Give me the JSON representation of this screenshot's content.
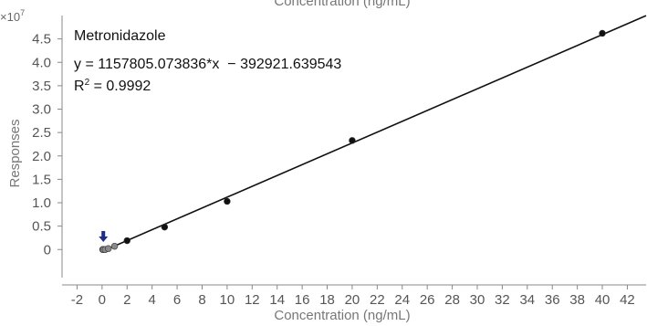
{
  "chart_data": {
    "type": "scatter",
    "title_top_clipped": "Concentration (ng/mL)",
    "xlabel": "Concentration (ng/mL)",
    "ylabel": "Responses",
    "y_multiplier": {
      "base": "×10",
      "exponent": "7"
    },
    "xlim": [
      -3.2,
      43.5
    ],
    "ylim": [
      -0.6,
      5.0
    ],
    "x_ticks": [
      -2,
      0,
      2,
      4,
      6,
      8,
      10,
      12,
      14,
      16,
      18,
      20,
      22,
      24,
      26,
      28,
      30,
      32,
      34,
      36,
      38,
      40,
      42
    ],
    "y_ticks": [
      {
        "value": 0,
        "label": "0"
      },
      {
        "value": 0.5,
        "label": "0.5"
      },
      {
        "value": 1.0,
        "label": "1.0"
      },
      {
        "value": 1.5,
        "label": "1.5"
      },
      {
        "value": 2.0,
        "label": "2.0"
      },
      {
        "value": 2.5,
        "label": "2.5"
      },
      {
        "value": 3.0,
        "label": "3.0"
      },
      {
        "value": 3.5,
        "label": "3.5"
      },
      {
        "value": 4.0,
        "label": "4.0"
      },
      {
        "value": 4.5,
        "label": "4.5"
      }
    ],
    "points": [
      {
        "x": 0.05,
        "y": 0.0,
        "color": "#8a8a8a"
      },
      {
        "x": 0.1,
        "y": 0.0,
        "color": "#8a8a8a"
      },
      {
        "x": 0.25,
        "y": 0.0,
        "color": "#8a8a8a"
      },
      {
        "x": 0.5,
        "y": 0.02,
        "color": "#8a8a8a"
      },
      {
        "x": 1.0,
        "y": 0.07,
        "color": "#8a8a8a"
      },
      {
        "x": 2.0,
        "y": 0.19,
        "color": "#111111"
      },
      {
        "x": 5.0,
        "y": 0.48,
        "color": "#111111"
      },
      {
        "x": 10.0,
        "y": 1.03,
        "color": "#111111"
      },
      {
        "x": 20.0,
        "y": 2.33,
        "color": "#111111"
      },
      {
        "x": 40.0,
        "y": 4.62,
        "color": "#111111"
      }
    ],
    "fit_line": {
      "x0": 0,
      "x1": 43.5,
      "slope": 0.1157805073836,
      "intercept": -0.0392921639543
    },
    "marker": {
      "x": 0.1,
      "y": 0.22,
      "color": "#1f2d8a",
      "label": "arrow-down-icon"
    },
    "annotation": {
      "compound": "Metronidazole",
      "equation": "y = 1157805.073836*x  − 392921.639543",
      "r2_label": "R",
      "r2_sup": "2",
      "r2_value": " = 0.9992"
    }
  }
}
